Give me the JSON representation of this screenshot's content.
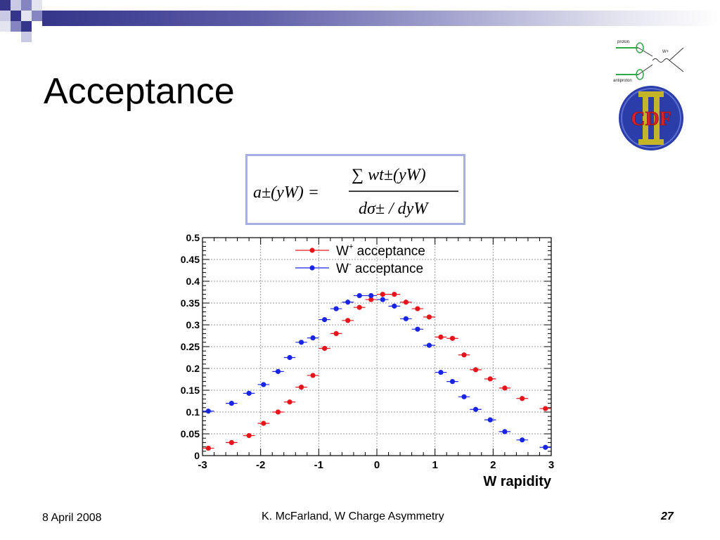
{
  "slide": {
    "title": "Acceptance",
    "footer_date": "8 April 2008",
    "footer_center": "K. McFarland, W Charge Asymmetry",
    "page_number": "27"
  },
  "logo": {
    "badge_text": "CDF",
    "diagram_labels": [
      "proton",
      "antiproton",
      "W+"
    ]
  },
  "formula": {
    "lhs": "a±(yW) =",
    "numerator": "∑ wt±(yW)",
    "denominator": "dσ± / dyW"
  },
  "colors": {
    "w_plus": "#e8141c",
    "w_minus": "#1a24e6",
    "top_bar_dark": "#35358a",
    "formula_border": "#a8aee4"
  },
  "chart_data": {
    "type": "scatter",
    "xlabel": "W rapidity",
    "ylabel": "",
    "xlim": [
      -3,
      3
    ],
    "ylim": [
      0,
      0.5
    ],
    "xticks": [
      "-3",
      "-2",
      "-1",
      "0",
      "1",
      "2",
      "3"
    ],
    "yticks": [
      "0",
      "0.05",
      "0.1",
      "0.15",
      "0.2",
      "0.25",
      "0.3",
      "0.35",
      "0.4",
      "0.45",
      "0.5"
    ],
    "grid": true,
    "legend_placement": "top-center",
    "x_bin_half_width": 0.1,
    "series": [
      {
        "name": "W+ acceptance",
        "legend_base": "W",
        "legend_sup": "+",
        "legend_suffix": " acceptance",
        "x": [
          -2.9,
          -2.5,
          -2.2,
          -1.95,
          -1.7,
          -1.5,
          -1.3,
          -1.1,
          -0.9,
          -0.7,
          -0.5,
          -0.3,
          -0.1,
          0.1,
          0.3,
          0.5,
          0.7,
          0.9,
          1.1,
          1.3,
          1.5,
          1.7,
          1.95,
          2.2,
          2.5,
          2.9
        ],
        "y": [
          0.017,
          0.03,
          0.046,
          0.074,
          0.1,
          0.123,
          0.157,
          0.184,
          0.246,
          0.28,
          0.31,
          0.34,
          0.358,
          0.37,
          0.37,
          0.352,
          0.337,
          0.318,
          0.272,
          0.269,
          0.231,
          0.197,
          0.176,
          0.155,
          0.131,
          0.108
        ]
      },
      {
        "name": "W- acceptance",
        "legend_base": "W",
        "legend_sup": "-",
        "legend_suffix": " acceptance",
        "x": [
          -2.9,
          -2.5,
          -2.2,
          -1.95,
          -1.7,
          -1.5,
          -1.3,
          -1.1,
          -0.9,
          -0.7,
          -0.5,
          -0.3,
          -0.1,
          0.1,
          0.3,
          0.5,
          0.7,
          0.9,
          1.1,
          1.3,
          1.5,
          1.7,
          1.95,
          2.2,
          2.5,
          2.9
        ],
        "y": [
          0.102,
          0.12,
          0.143,
          0.163,
          0.193,
          0.225,
          0.26,
          0.27,
          0.312,
          0.337,
          0.352,
          0.367,
          0.367,
          0.358,
          0.343,
          0.314,
          0.29,
          0.253,
          0.191,
          0.17,
          0.135,
          0.106,
          0.082,
          0.055,
          0.036,
          0.019
        ]
      }
    ]
  }
}
